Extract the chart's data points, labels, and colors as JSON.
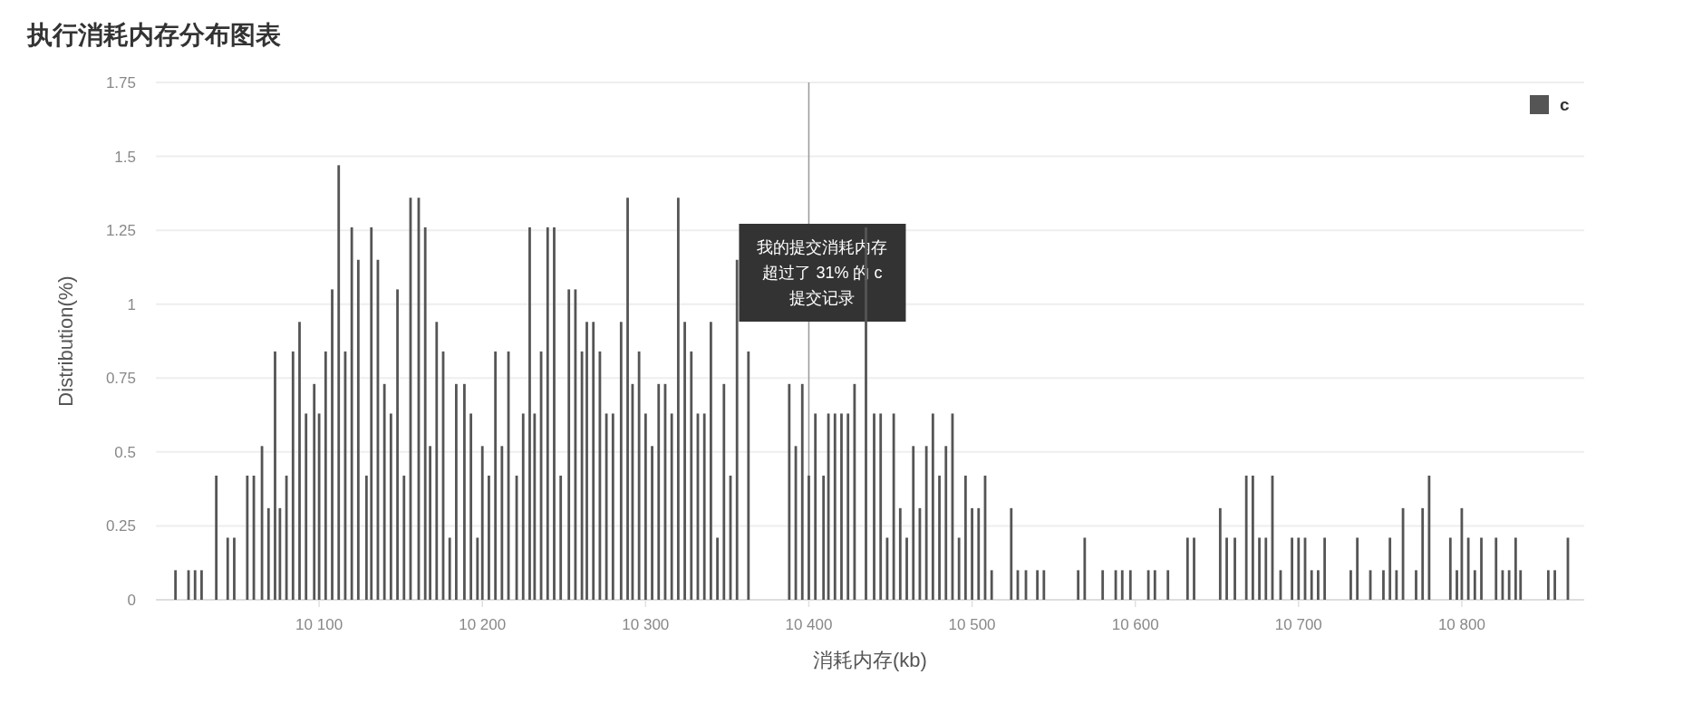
{
  "chart_data": {
    "type": "bar",
    "title": "执行消耗内存分布图表",
    "xlabel": "消耗内存(kb)",
    "ylabel": "Distribution(%)",
    "x": [
      10012,
      10020,
      10024,
      10028,
      10037,
      10044,
      10048,
      10056,
      10060,
      10065,
      10069,
      10073,
      10076,
      10080,
      10084,
      10088,
      10092,
      10097,
      10100,
      10104,
      10108,
      10112,
      10116,
      10120,
      10124,
      10129,
      10132,
      10136,
      10140,
      10144,
      10148,
      10152,
      10156,
      10161,
      10165,
      10168,
      10172,
      10176,
      10180,
      10184,
      10189,
      10193,
      10197,
      10200,
      10204,
      10208,
      10212,
      10216,
      10221,
      10225,
      10229,
      10232,
      10236,
      10240,
      10244,
      10248,
      10253,
      10257,
      10261,
      10264,
      10268,
      10272,
      10276,
      10280,
      10285,
      10289,
      10292,
      10296,
      10300,
      10304,
      10308,
      10312,
      10316,
      10320,
      10324,
      10328,
      10332,
      10336,
      10340,
      10344,
      10348,
      10352,
      10356,
      10363,
      10388,
      10392,
      10396,
      10400,
      10404,
      10409,
      10412,
      10416,
      10420,
      10424,
      10428,
      10435,
      10440,
      10444,
      10448,
      10452,
      10456,
      10460,
      10464,
      10468,
      10472,
      10476,
      10480,
      10484,
      10488,
      10492,
      10496,
      10500,
      10504,
      10508,
      10512,
      10524,
      10528,
      10533,
      10540,
      10544,
      10565,
      10569,
      10580,
      10588,
      10592,
      10597,
      10608,
      10612,
      10620,
      10632,
      10636,
      10652,
      10656,
      10661,
      10668,
      10672,
      10676,
      10680,
      10684,
      10689,
      10696,
      10700,
      10704,
      10708,
      10712,
      10716,
      10732,
      10736,
      10744,
      10752,
      10756,
      10760,
      10764,
      10772,
      10776,
      10780,
      10793,
      10797,
      10800,
      10804,
      10808,
      10812,
      10821,
      10825,
      10829,
      10833,
      10836,
      10853,
      10857,
      10865
    ],
    "series": [
      {
        "name": "c",
        "color": "#555555",
        "values": [
          0.1,
          0.1,
          0.1,
          0.1,
          0.42,
          0.21,
          0.21,
          0.42,
          0.42,
          0.52,
          0.31,
          0.84,
          0.31,
          0.42,
          0.84,
          0.94,
          0.63,
          0.73,
          0.63,
          0.84,
          1.05,
          1.47,
          0.84,
          1.26,
          1.15,
          0.42,
          1.26,
          1.15,
          0.73,
          0.63,
          1.05,
          0.42,
          1.36,
          1.36,
          1.26,
          0.52,
          0.94,
          0.84,
          0.21,
          0.73,
          0.73,
          0.63,
          0.21,
          0.52,
          0.42,
          0.84,
          0.52,
          0.84,
          0.42,
          0.63,
          1.26,
          0.63,
          0.84,
          1.26,
          1.26,
          0.42,
          1.05,
          1.05,
          0.84,
          0.94,
          0.94,
          0.84,
          0.63,
          0.63,
          0.94,
          1.36,
          0.73,
          0.84,
          0.63,
          0.52,
          0.73,
          0.73,
          0.63,
          1.36,
          0.94,
          0.84,
          0.63,
          0.63,
          0.94,
          0.21,
          0.73,
          0.42,
          1.15,
          0.84,
          0.73,
          0.52,
          0.73,
          0.42,
          0.63,
          0.42,
          0.63,
          0.63,
          0.63,
          0.63,
          0.73,
          1.26,
          0.63,
          0.63,
          0.21,
          0.63,
          0.31,
          0.21,
          0.52,
          0.31,
          0.52,
          0.63,
          0.42,
          0.52,
          0.63,
          0.21,
          0.42,
          0.31,
          0.31,
          0.42,
          0.1,
          0.31,
          0.1,
          0.1,
          0.1,
          0.1,
          0.1,
          0.21,
          0.1,
          0.1,
          0.1,
          0.1,
          0.1,
          0.1,
          0.1,
          0.21,
          0.21,
          0.31,
          0.21,
          0.21,
          0.42,
          0.42,
          0.21,
          0.21,
          0.42,
          0.1,
          0.21,
          0.21,
          0.21,
          0.1,
          0.1,
          0.21,
          0.1,
          0.21,
          0.1,
          0.1,
          0.21,
          0.1,
          0.31,
          0.1,
          0.31,
          0.42,
          0.21,
          0.1,
          0.31,
          0.21,
          0.1,
          0.21,
          0.21,
          0.1,
          0.1,
          0.21,
          0.1,
          0.1,
          0.1,
          0.21
        ]
      }
    ],
    "xlim": [
      10000,
      10875
    ],
    "ylim": [
      0,
      1.75
    ],
    "xticks": [
      {
        "value": 10100,
        "label": "10 100"
      },
      {
        "value": 10200,
        "label": "10 200"
      },
      {
        "value": 10300,
        "label": "10 300"
      },
      {
        "value": 10400,
        "label": "10 400"
      },
      {
        "value": 10500,
        "label": "10 500"
      },
      {
        "value": 10600,
        "label": "10 600"
      },
      {
        "value": 10700,
        "label": "10 700"
      },
      {
        "value": 10800,
        "label": "10 800"
      }
    ],
    "yticks": [
      0,
      0.25,
      0.5,
      0.75,
      1,
      1.25,
      1.5,
      1.75
    ],
    "grid": "y",
    "legend": "top right",
    "ref_lines": [
      {
        "axis": "x",
        "value": 10400,
        "label": "我的提交消耗内存超过了 31% 的 c 提交记录",
        "color": "#999999"
      }
    ]
  }
}
